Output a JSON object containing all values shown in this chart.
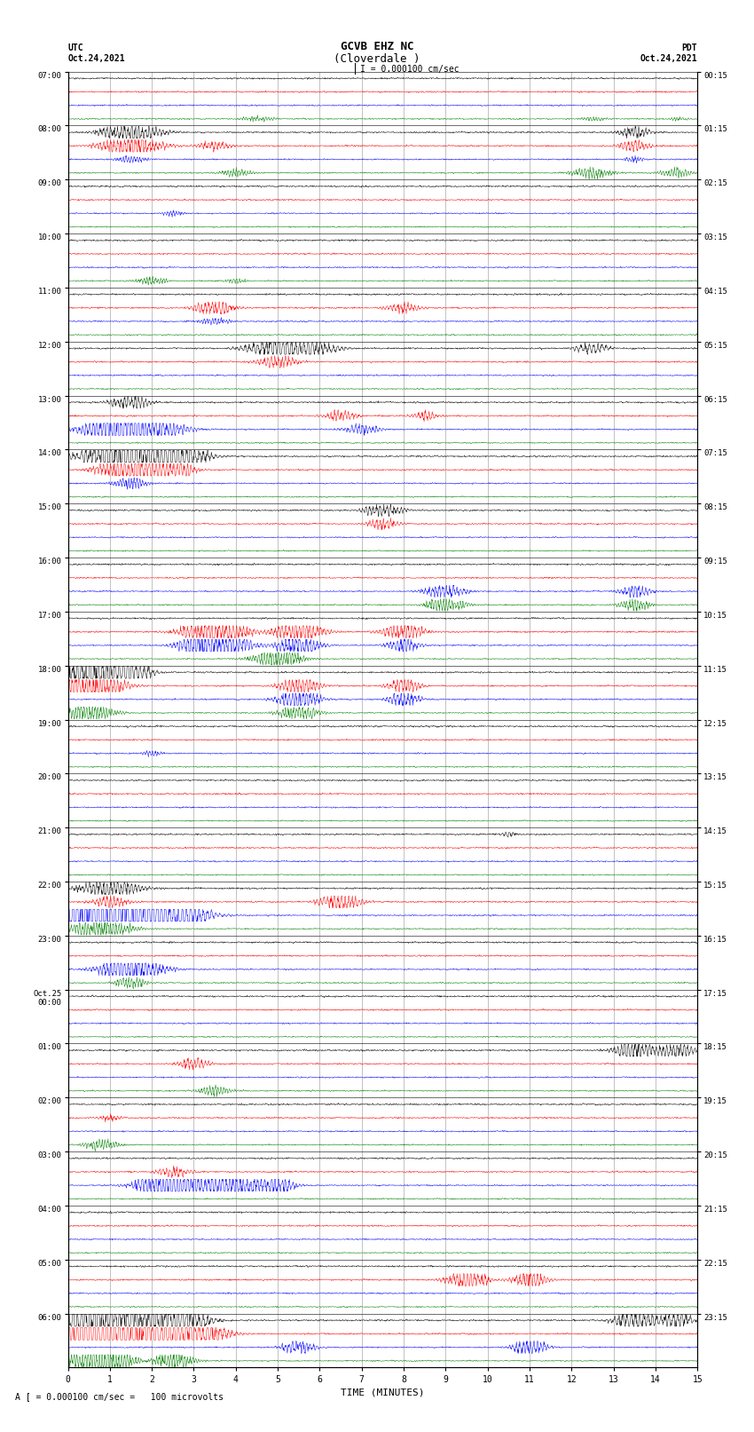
{
  "title_line1": "GCVB EHZ NC",
  "title_line2": "(Cloverdale )",
  "title_line3": "I = 0.000100 cm/sec",
  "left_header_line1": "UTC",
  "left_header_line2": "Oct.24,2021",
  "right_header_line1": "PDT",
  "right_header_line2": "Oct.24,2021",
  "xlabel": "TIME (MINUTES)",
  "bottom_note": "A [ = 0.000100 cm/sec =   100 microvolts",
  "utc_labels": [
    "07:00",
    "08:00",
    "09:00",
    "10:00",
    "11:00",
    "12:00",
    "13:00",
    "14:00",
    "15:00",
    "16:00",
    "17:00",
    "18:00",
    "19:00",
    "20:00",
    "21:00",
    "22:00",
    "23:00",
    "Oct.25\n00:00",
    "01:00",
    "02:00",
    "03:00",
    "04:00",
    "05:00",
    "06:00"
  ],
  "pdt_labels": [
    "00:15",
    "01:15",
    "02:15",
    "03:15",
    "04:15",
    "05:15",
    "06:15",
    "07:15",
    "08:15",
    "09:15",
    "10:15",
    "11:15",
    "12:15",
    "13:15",
    "14:15",
    "15:15",
    "16:15",
    "17:15",
    "18:15",
    "19:15",
    "20:15",
    "21:15",
    "22:15",
    "23:15"
  ],
  "n_rows": 24,
  "traces_per_row": 4,
  "colors": [
    "black",
    "red",
    "blue",
    "green"
  ],
  "xmin": 0,
  "xmax": 15,
  "background_color": "white",
  "grid_color": "#aaaaaa",
  "base_noise": 0.025,
  "seed": 12345
}
